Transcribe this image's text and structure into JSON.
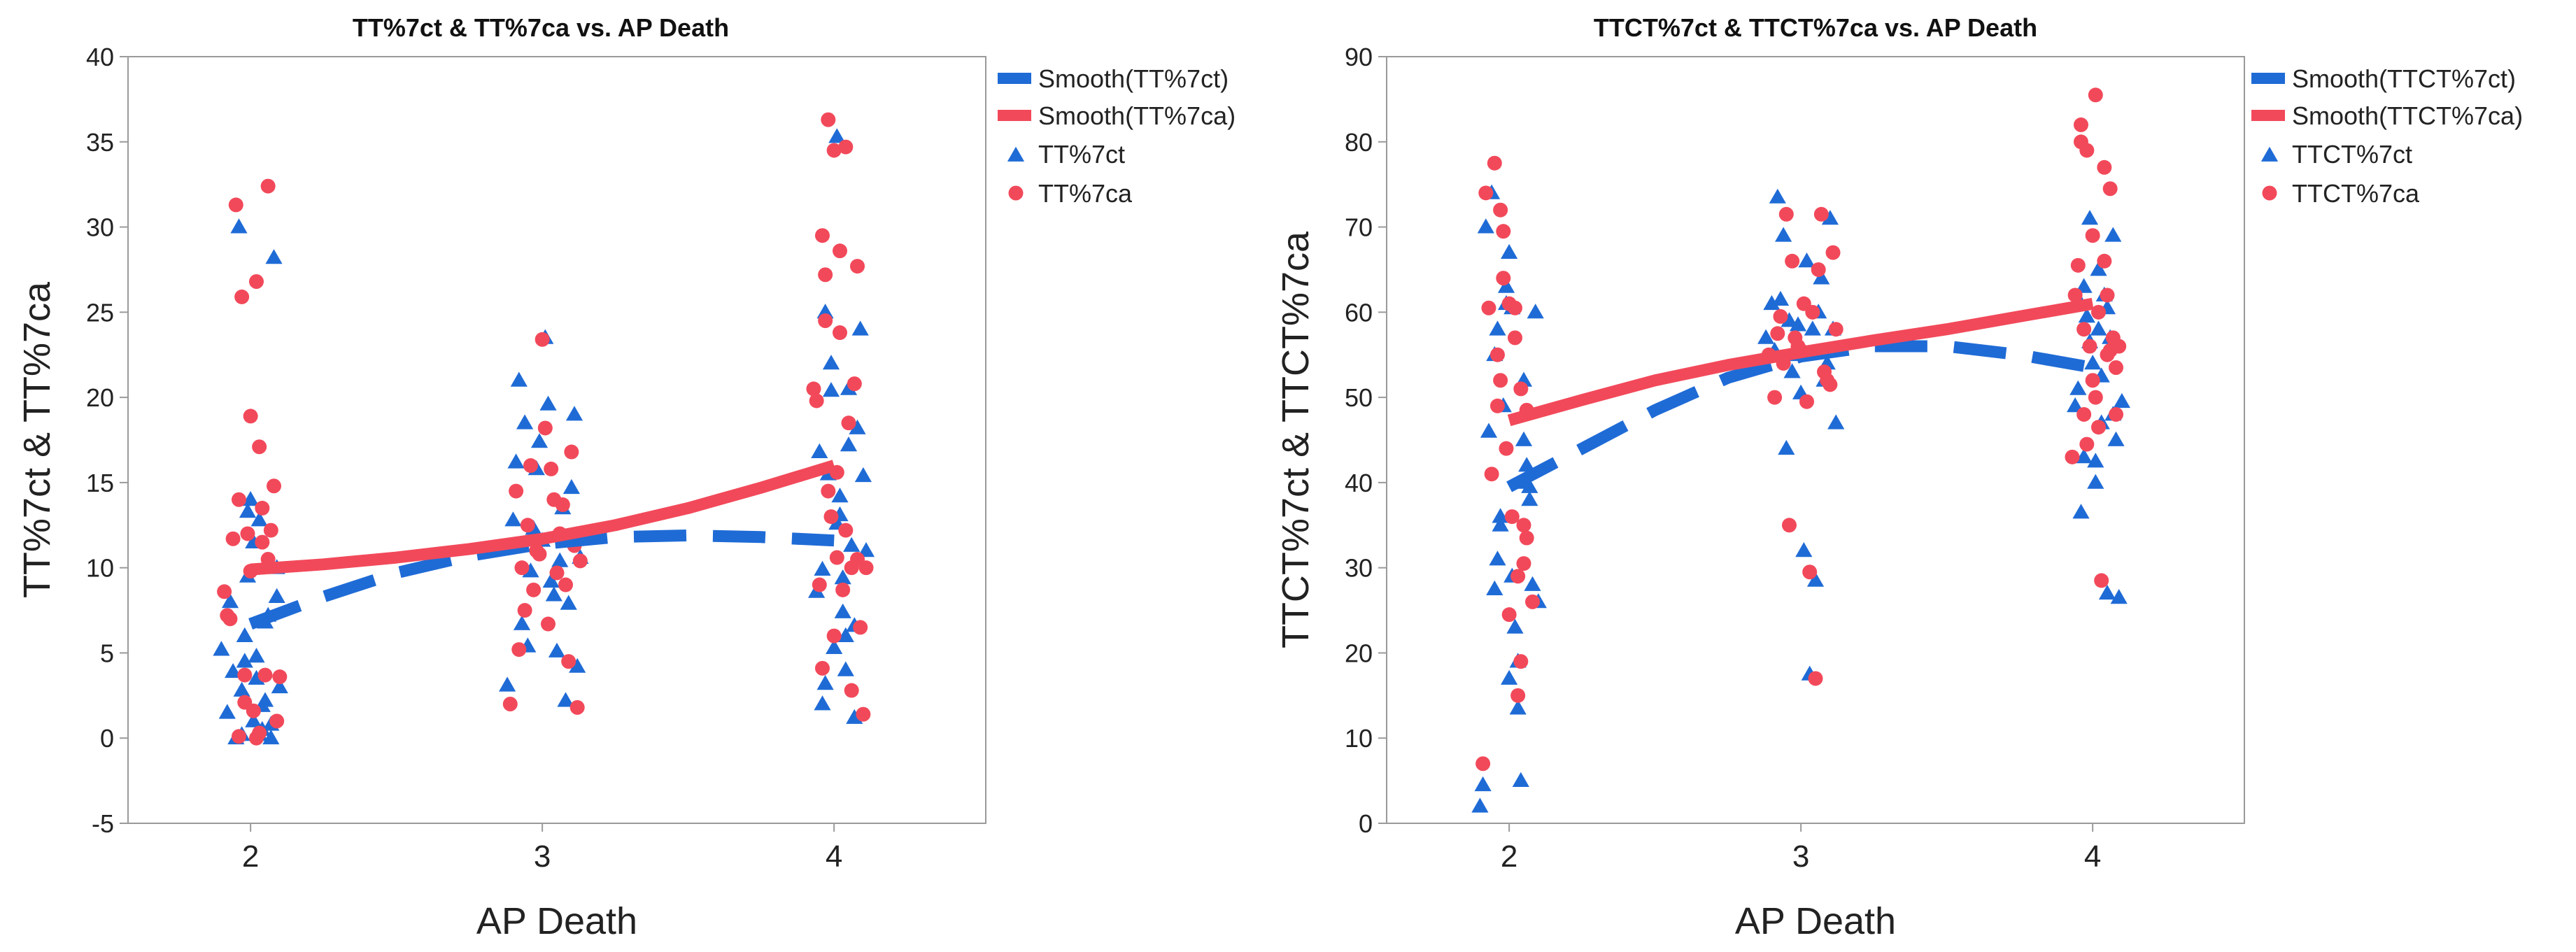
{
  "colors": {
    "blue": "#1f6bd6",
    "red": "#f2495a",
    "axis": "#9a9a9a",
    "text": "#222222"
  },
  "chart_data": [
    {
      "type": "scatter",
      "title": "TT%7ct & TT%7ca vs. AP Death",
      "xlabel": "AP Death",
      "ylabel": "TT%7ct & TT%7ca",
      "xlim": [
        1.58,
        4.52
      ],
      "ylim": [
        -5,
        40
      ],
      "xticks": [
        "2",
        "3",
        "4"
      ],
      "yticks": [
        "-5",
        "0",
        "5",
        "10",
        "15",
        "20",
        "25",
        "30",
        "35",
        "40"
      ],
      "legend_position": "top-right, outside plot",
      "legend": [
        "Smooth(TT%7ct)",
        "Smooth(TT%7ca)",
        "TT%7ct",
        "TT%7ca"
      ],
      "smooth": [
        {
          "name": "Smooth(TT%7ct)",
          "style": "dashed",
          "x": [
            2.0,
            2.25,
            2.5,
            2.75,
            3.0,
            3.25,
            3.5,
            3.75,
            4.0
          ],
          "y": [
            6.7,
            8.3,
            9.7,
            10.7,
            11.4,
            11.8,
            11.9,
            11.8,
            11.6
          ]
        },
        {
          "name": "Smooth(TT%7ca)",
          "style": "solid",
          "x": [
            2.0,
            2.25,
            2.5,
            2.75,
            3.0,
            3.25,
            3.5,
            3.75,
            4.0
          ],
          "y": [
            9.9,
            10.2,
            10.6,
            11.1,
            11.7,
            12.5,
            13.5,
            14.7,
            16.0
          ]
        }
      ],
      "series": [
        {
          "name": "TT%7ct",
          "marker": "triangle",
          "x": [
            1.9,
            1.92,
            1.94,
            1.96,
            1.97,
            1.98,
            1.99,
            2.0,
            2.01,
            2.02,
            2.03,
            2.04,
            2.05,
            2.06,
            2.07,
            2.08,
            2.09,
            2.1,
            1.95,
            1.97,
            1.99,
            2.01,
            2.03,
            2.05,
            2.07,
            2.09,
            1.93,
            2.02,
            2.04,
            1.98,
            2.88,
            2.9,
            2.92,
            2.94,
            2.95,
            2.96,
            2.98,
            3.0,
            3.01,
            3.02,
            3.04,
            3.05,
            3.06,
            3.08,
            3.1,
            3.12,
            2.93,
            2.97,
            2.99,
            3.03,
            3.07,
            3.09,
            3.11,
            2.91,
            3.13,
            3.94,
            3.96,
            3.97,
            3.98,
            3.99,
            4.0,
            4.01,
            4.02,
            4.03,
            4.04,
            4.05,
            4.06,
            4.07,
            4.08,
            3.95,
            3.97,
            3.99,
            4.01,
            4.03,
            4.05,
            4.07,
            3.96,
            4.02,
            4.04,
            4.09,
            4.1,
            4.11
          ],
          "y": [
            5.2,
            1.5,
            3.9,
            30.0,
            0.2,
            6.0,
            9.5,
            14.0,
            1.0,
            4.8,
            12.8,
            0.5,
            2.2,
            7.2,
            0.0,
            28.2,
            8.3,
            3.0,
            0.0,
            2.8,
            13.3,
            11.5,
            0.2,
            6.8,
            0.8,
            10.0,
            8.0,
            3.5,
            1.9,
            4.5,
            3.1,
            12.8,
            21.0,
            18.5,
            5.4,
            9.8,
            15.8,
            11.6,
            23.5,
            19.6,
            8.4,
            5.1,
            10.4,
            2.2,
            14.7,
            4.2,
            6.7,
            12.3,
            17.4,
            9.2,
            13.5,
            7.9,
            19.0,
            16.2,
            10.6,
            8.6,
            2.0,
            25.0,
            15.5,
            20.4,
            5.3,
            35.3,
            13.1,
            9.4,
            4.0,
            20.5,
            11.3,
            6.6,
            18.2,
            16.8,
            3.2,
            22.0,
            12.6,
            7.4,
            17.2,
            1.2,
            9.9,
            14.2,
            6.0,
            24.0,
            15.4,
            11.0
          ]
        },
        {
          "name": "TT%7ca",
          "marker": "circle",
          "x": [
            1.91,
            1.93,
            1.95,
            1.96,
            1.97,
            1.98,
            1.99,
            2.0,
            2.01,
            2.02,
            2.03,
            2.04,
            2.05,
            2.06,
            2.08,
            2.1,
            1.94,
            1.96,
            1.98,
            2.0,
            2.02,
            2.04,
            2.06,
            2.09,
            1.92,
            2.07,
            2.03,
            2.89,
            2.91,
            2.93,
            2.95,
            2.96,
            2.97,
            2.98,
            3.0,
            3.01,
            3.02,
            3.03,
            3.05,
            3.07,
            3.09,
            3.11,
            3.12,
            2.94,
            2.99,
            3.04,
            3.06,
            3.08,
            3.1,
            3.13,
            2.92,
            3.93,
            3.95,
            3.96,
            3.97,
            3.98,
            3.99,
            4.0,
            4.01,
            4.02,
            4.03,
            4.04,
            4.05,
            4.06,
            4.07,
            4.08,
            4.09,
            4.1,
            3.94,
            3.96,
            3.98,
            4.0,
            4.02,
            4.04,
            4.06,
            4.08,
            4.11,
            3.97,
            4.01
          ],
          "y": [
            8.6,
            7.0,
            31.3,
            0.1,
            25.9,
            3.7,
            12.0,
            18.9,
            1.6,
            26.8,
            17.1,
            11.5,
            3.7,
            32.4,
            14.8,
            3.6,
            11.7,
            14.0,
            2.1,
            9.8,
            0.0,
            13.5,
            10.5,
            1.0,
            7.2,
            12.2,
            0.3,
            2.0,
            14.5,
            10.0,
            12.5,
            16.0,
            8.7,
            11.0,
            23.4,
            18.2,
            6.7,
            15.8,
            9.7,
            13.7,
            4.5,
            11.3,
            1.8,
            7.5,
            10.8,
            14.0,
            12.0,
            9.0,
            16.8,
            10.4,
            5.2,
            20.5,
            9.0,
            29.5,
            27.2,
            36.3,
            13.0,
            34.5,
            10.6,
            23.8,
            8.7,
            34.7,
            18.5,
            10.0,
            20.8,
            27.7,
            6.5,
            1.4,
            19.8,
            4.1,
            14.5,
            6.0,
            28.6,
            12.2,
            2.8,
            10.5,
            10.0,
            24.5,
            15.6
          ]
        }
      ]
    },
    {
      "type": "scatter",
      "title": "TTCT%7ct & TTCT%7ca vs. AP Death",
      "xlabel": "AP Death",
      "ylabel": "TTCT%7ct & TTCT%7ca",
      "xlim": [
        1.58,
        4.52
      ],
      "ylim": [
        0,
        90
      ],
      "xticks": [
        "2",
        "3",
        "4"
      ],
      "yticks": [
        "0",
        "10",
        "20",
        "30",
        "40",
        "50",
        "60",
        "70",
        "80",
        "90"
      ],
      "legend_position": "top-right, outside plot",
      "legend": [
        "Smooth(TTCT%7ct)",
        "Smooth(TTCT%7ca)",
        "TTCT%7ct",
        "TTCT%7ca"
      ],
      "smooth": [
        {
          "name": "Smooth(TTCT%7ct)",
          "style": "dashed",
          "x": [
            2.0,
            2.25,
            2.5,
            2.75,
            3.0,
            3.25,
            3.5,
            3.75,
            4.0
          ],
          "y": [
            39.5,
            44.0,
            48.5,
            52.3,
            54.8,
            56.0,
            56.0,
            55.0,
            53.5
          ]
        },
        {
          "name": "Smooth(TTCT%7ca)",
          "style": "solid",
          "x": [
            2.0,
            2.25,
            2.5,
            2.75,
            3.0,
            3.25,
            3.5,
            3.75,
            4.0
          ],
          "y": [
            47.3,
            49.7,
            52.0,
            53.8,
            55.3,
            56.7,
            58.0,
            59.5,
            61.0
          ]
        }
      ],
      "series": [
        {
          "name": "TTCT%7ct",
          "marker": "triangle",
          "x": [
            1.9,
            1.92,
            1.94,
            1.95,
            1.96,
            1.97,
            1.98,
            1.99,
            2.0,
            2.01,
            2.02,
            2.03,
            2.04,
            2.05,
            2.06,
            2.07,
            2.08,
            2.1,
            1.93,
            1.95,
            1.97,
            1.99,
            2.01,
            2.03,
            2.05,
            2.07,
            1.91,
            1.96,
            2.0,
            2.04,
            2.09,
            2.88,
            2.9,
            2.92,
            2.94,
            2.95,
            2.96,
            2.98,
            3.0,
            3.01,
            3.02,
            3.04,
            3.05,
            3.06,
            3.08,
            3.1,
            3.12,
            2.93,
            2.97,
            2.99,
            3.03,
            3.07,
            3.09,
            3.11,
            2.91,
            3.94,
            3.96,
            3.97,
            3.98,
            3.99,
            4.0,
            4.01,
            4.02,
            4.03,
            4.04,
            4.05,
            4.06,
            4.07,
            4.08,
            3.95,
            3.97,
            3.99,
            4.01,
            4.03,
            4.05,
            4.07,
            3.96,
            4.02,
            4.09,
            4.1
          ],
          "y": [
            2.0,
            70.0,
            74.0,
            27.5,
            58.0,
            36.0,
            49.0,
            61.0,
            17.0,
            60.5,
            23.0,
            13.5,
            5.0,
            52.0,
            42.0,
            39.5,
            28.0,
            26.0,
            46.0,
            55.0,
            35.0,
            63.0,
            29.0,
            19.0,
            45.0,
            38.0,
            4.5,
            31.0,
            67.0,
            40.0,
            60.0,
            57.0,
            61.0,
            73.5,
            69.0,
            44.0,
            59.0,
            55.0,
            50.5,
            32.0,
            66.0,
            58.0,
            28.5,
            60.0,
            52.0,
            71.0,
            47.0,
            61.5,
            53.0,
            58.5,
            17.5,
            64.0,
            54.0,
            58.0,
            55.5,
            49.0,
            36.5,
            43.0,
            59.5,
            71.0,
            54.0,
            40.0,
            65.0,
            47.0,
            62.0,
            27.0,
            57.0,
            69.0,
            45.0,
            51.0,
            63.0,
            56.5,
            42.5,
            52.5,
            60.5,
            48.0,
            61.0,
            58.0,
            26.5,
            49.5
          ]
        },
        {
          "name": "TTCT%7ca",
          "marker": "circle",
          "x": [
            1.91,
            1.93,
            1.95,
            1.96,
            1.97,
            1.98,
            1.99,
            2.0,
            2.01,
            2.02,
            2.03,
            2.04,
            2.05,
            2.06,
            2.08,
            1.94,
            1.96,
            1.98,
            2.0,
            2.02,
            2.04,
            2.06,
            1.92,
            1.97,
            2.03,
            2.05,
            2.89,
            2.91,
            2.93,
            2.95,
            2.96,
            2.97,
            2.98,
            3.0,
            3.01,
            3.02,
            3.03,
            3.05,
            3.07,
            3.09,
            3.11,
            3.12,
            2.94,
            2.99,
            3.04,
            3.06,
            3.08,
            3.1,
            2.92,
            3.93,
            3.95,
            3.96,
            3.97,
            3.98,
            3.99,
            4.0,
            4.01,
            4.02,
            4.03,
            4.04,
            4.05,
            4.06,
            4.07,
            4.08,
            4.09,
            3.94,
            3.96,
            3.98,
            4.0,
            4.02,
            4.04,
            4.06,
            4.08,
            3.97,
            4.01,
            4.05
          ],
          "y": [
            7.0,
            60.5,
            77.5,
            49.0,
            72.0,
            69.5,
            44.0,
            61.0,
            36.0,
            60.5,
            15.0,
            51.0,
            30.5,
            33.5,
            26.0,
            41.0,
            55.0,
            64.0,
            24.5,
            57.0,
            19.0,
            48.5,
            74.0,
            52.0,
            29.0,
            35.0,
            55.0,
            50.0,
            59.5,
            71.5,
            35.0,
            66.0,
            57.0,
            55.5,
            61.0,
            49.5,
            29.5,
            17.0,
            71.5,
            52.0,
            67.0,
            58.0,
            54.0,
            56.0,
            60.0,
            65.0,
            53.0,
            51.5,
            57.5,
            43.0,
            65.5,
            82.0,
            48.0,
            79.0,
            56.0,
            52.0,
            85.5,
            46.5,
            28.5,
            77.0,
            62.0,
            74.5,
            57.0,
            53.5,
            56.0,
            62.0,
            80.0,
            44.5,
            69.0,
            60.0,
            66.0,
            55.5,
            48.0,
            58.0,
            50.0,
            55.0
          ]
        }
      ]
    }
  ]
}
